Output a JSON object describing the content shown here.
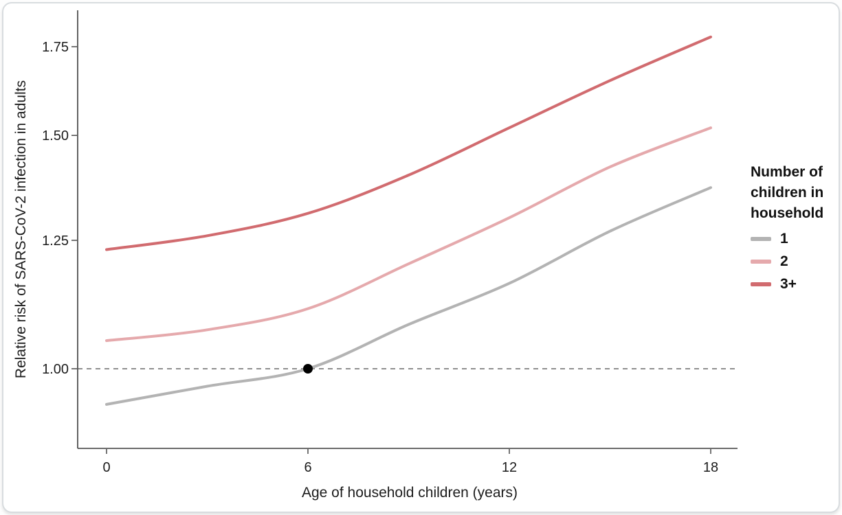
{
  "chart_data": {
    "type": "line",
    "title": "",
    "xlabel": "Age of household children (years)",
    "ylabel": "Relative risk of SARS-CoV-2 infection in adults",
    "x": [
      0,
      3,
      6,
      9,
      12,
      15,
      18
    ],
    "xlim": [
      0,
      18
    ],
    "x_ticks": [
      0,
      6,
      12,
      18
    ],
    "x_tick_labels": [
      "0",
      "6",
      "12",
      "18"
    ],
    "y_scale": "log",
    "ylim": [
      0.88,
      1.82
    ],
    "y_ticks": [
      1.75,
      1.5,
      1.25,
      1.0
    ],
    "y_tick_labels": [
      "1.75",
      "1.50",
      "1.25",
      "1.00"
    ],
    "grid": false,
    "legend_position": "right",
    "series": [
      {
        "name": "1",
        "color": "#b3b3b3",
        "values": [
          0.94,
          0.97,
          1.0,
          1.08,
          1.16,
          1.27,
          1.37
        ]
      },
      {
        "name": "2",
        "color": "#e5a9ac",
        "values": [
          1.05,
          1.07,
          1.11,
          1.2,
          1.3,
          1.42,
          1.52
        ]
      },
      {
        "name": "3+",
        "color": "#d16b6f",
        "values": [
          1.23,
          1.26,
          1.31,
          1.4,
          1.52,
          1.65,
          1.78
        ]
      }
    ],
    "reference_line": {
      "value": 1.0,
      "style": "dashed",
      "color": "#4a4a4a"
    },
    "annotation_point": {
      "x": 6,
      "y": 1.0,
      "color": "#000000"
    }
  },
  "legend": {
    "title": "Number of children in household",
    "items": [
      {
        "label": "1",
        "color": "#b3b3b3"
      },
      {
        "label": "2",
        "color": "#e5a9ac"
      },
      {
        "label": "3+",
        "color": "#d16b6f"
      }
    ]
  }
}
